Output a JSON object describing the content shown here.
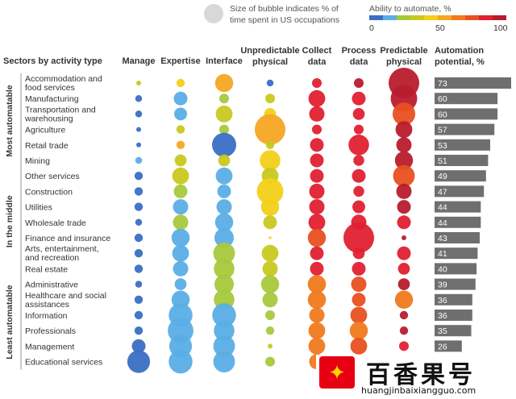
{
  "legend": {
    "size_label_line1": "Size of bubble indicates % of",
    "size_label_line2": "time spent in US occupations",
    "color_title": "Ability to automate, %",
    "color_ticks": [
      "0",
      "50",
      "100"
    ],
    "color_scale": [
      "#3a6fc4",
      "#5aaee6",
      "#a8c83c",
      "#c8c820",
      "#f3d019",
      "#f5a623",
      "#f07a1e",
      "#e85020",
      "#e02030",
      "#b81c2c"
    ]
  },
  "headers": {
    "sectors": "Sectors by activity type",
    "manage": "Manage",
    "expertise": "Expertise",
    "interface": "Interface",
    "unpredictable_l1": "Unpredictable",
    "unpredictable_l2": "physical",
    "collect_l1": "Collect",
    "collect_l2": "data",
    "process_l1": "Process",
    "process_l2": "data",
    "predictable_l1": "Predictable",
    "predictable_l2": "physical",
    "potential_l1": "Automation",
    "potential_l2": "potential, %"
  },
  "watermark": {
    "logo_glyph": "✦",
    "title": "百香果号",
    "url": "huangjinbaixiangguo.com"
  },
  "chart_data": {
    "type": "bubble-matrix",
    "activities": [
      "Manage",
      "Expertise",
      "Interface",
      "Unpredictable physical",
      "Collect data",
      "Process data",
      "Predictable physical"
    ],
    "groups": [
      {
        "label": "Most automatable",
        "sectors": [
          0,
          1,
          2,
          3,
          4,
          5
        ]
      },
      {
        "label": "In the middle",
        "sectors": [
          6,
          7,
          8,
          9,
          10,
          11,
          12
        ]
      },
      {
        "label": "Least automatable",
        "sectors": [
          13,
          14,
          15,
          16,
          17,
          18
        ]
      }
    ],
    "sectors": [
      {
        "name": [
          "Accommodation and",
          "food services"
        ],
        "potential": 73,
        "time": [
          1,
          3,
          14,
          2,
          4,
          4,
          40
        ],
        "ability": [
          30,
          40,
          55,
          5,
          80,
          90,
          95
        ]
      },
      {
        "name": [
          "Manufacturing"
        ],
        "potential": 60,
        "time": [
          2,
          8,
          4,
          4,
          12,
          8,
          30
        ],
        "ability": [
          5,
          18,
          22,
          38,
          83,
          88,
          92
        ]
      },
      {
        "name": [
          "Transportation and",
          "warehousing"
        ],
        "potential": 60,
        "time": [
          2,
          7,
          12,
          6,
          10,
          6,
          22
        ],
        "ability": [
          5,
          15,
          38,
          42,
          83,
          88,
          75
        ]
      },
      {
        "name": [
          "Agriculture"
        ],
        "potential": 57,
        "time": [
          1,
          3,
          4,
          40,
          4,
          4,
          12
        ],
        "ability": [
          5,
          35,
          22,
          55,
          85,
          88,
          90
        ]
      },
      {
        "name": [
          "Retail trade"
        ],
        "potential": 53,
        "time": [
          1,
          3,
          25,
          3,
          8,
          18,
          10
        ],
        "ability": [
          5,
          55,
          2,
          35,
          85,
          85,
          92
        ]
      },
      {
        "name": [
          "Mining"
        ],
        "potential": 51,
        "time": [
          2,
          6,
          6,
          18,
          8,
          5,
          14
        ],
        "ability": [
          10,
          32,
          35,
          42,
          83,
          85,
          92
        ]
      },
      {
        "name": [
          "Other services"
        ],
        "potential": 49,
        "time": [
          3,
          12,
          12,
          12,
          8,
          8,
          20
        ],
        "ability": [
          5,
          35,
          14,
          35,
          85,
          88,
          75
        ]
      },
      {
        "name": [
          "Construction"
        ],
        "potential": 47,
        "time": [
          3,
          8,
          8,
          30,
          10,
          5,
          10
        ],
        "ability": [
          5,
          22,
          18,
          45,
          85,
          85,
          90
        ]
      },
      {
        "name": [
          "Utilities"
        ],
        "potential": 44,
        "time": [
          3,
          10,
          10,
          14,
          10,
          7,
          8
        ],
        "ability": [
          5,
          18,
          15,
          40,
          80,
          85,
          90
        ]
      },
      {
        "name": [
          "Wholesale trade"
        ],
        "potential": 44,
        "time": [
          2,
          10,
          14,
          8,
          12,
          10,
          8
        ],
        "ability": [
          5,
          20,
          15,
          35,
          80,
          85,
          88
        ]
      },
      {
        "name": [
          "Finance and insurance"
        ],
        "potential": 43,
        "time": [
          3,
          14,
          16,
          0.3,
          14,
          40,
          1
        ],
        "ability": [
          5,
          15,
          15,
          40,
          70,
          82,
          95
        ]
      },
      {
        "name": [
          "Arts, entertainment,",
          "and recreation"
        ],
        "potential": 41,
        "time": [
          3,
          12,
          20,
          12,
          8,
          6,
          8
        ],
        "ability": [
          5,
          18,
          28,
          30,
          82,
          85,
          88
        ]
      },
      {
        "name": [
          "Real estate"
        ],
        "potential": 40,
        "time": [
          3,
          10,
          18,
          10,
          8,
          8,
          6
        ],
        "ability": [
          5,
          18,
          20,
          35,
          82,
          85,
          88
        ]
      },
      {
        "name": [
          "Administrative"
        ],
        "potential": 39,
        "time": [
          2,
          6,
          16,
          14,
          14,
          10,
          6
        ],
        "ability": [
          5,
          18,
          22,
          25,
          68,
          72,
          90
        ]
      },
      {
        "name": [
          "Healthcare and social",
          "assistances"
        ],
        "potential": 36,
        "time": [
          3,
          14,
          18,
          10,
          14,
          8,
          14
        ],
        "ability": [
          5,
          18,
          25,
          25,
          68,
          70,
          68
        ]
      },
      {
        "name": [
          "Information"
        ],
        "potential": 36,
        "time": [
          3,
          24,
          24,
          4,
          10,
          12,
          3
        ],
        "ability": [
          5,
          18,
          18,
          28,
          68,
          70,
          92
        ]
      },
      {
        "name": [
          "Professionals"
        ],
        "potential": 35,
        "time": [
          3,
          28,
          18,
          3,
          12,
          14,
          3
        ],
        "ability": [
          5,
          15,
          18,
          25,
          68,
          68,
          90
        ]
      },
      {
        "name": [
          "Management"
        ],
        "potential": 26,
        "time": [
          8,
          22,
          20,
          1,
          12,
          12,
          4
        ],
        "ability": [
          5,
          15,
          18,
          30,
          68,
          70,
          88
        ]
      },
      {
        "name": [
          "Educational services"
        ],
        "potential": 27,
        "time": [
          22,
          24,
          20,
          4,
          10,
          8,
          2
        ],
        "ability": [
          5,
          15,
          18,
          28,
          66,
          66,
          88
        ]
      }
    ],
    "potential_range": [
      0,
      100
    ]
  }
}
